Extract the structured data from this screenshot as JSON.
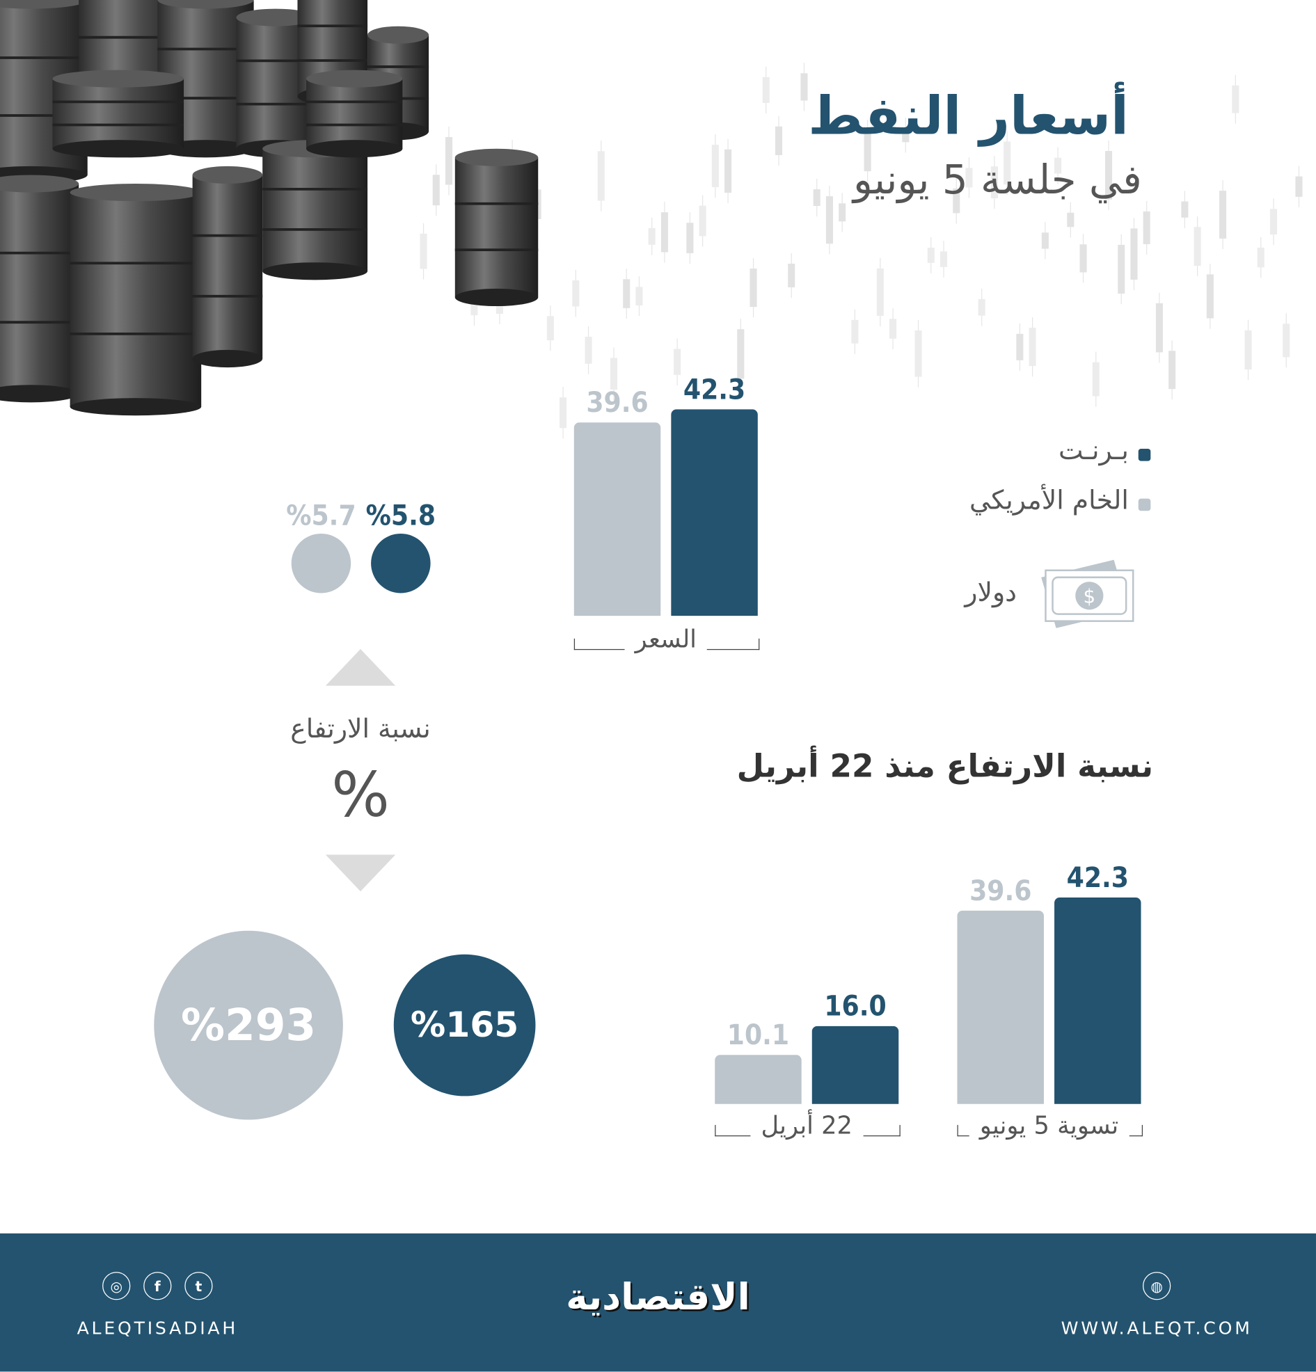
{
  "header": {
    "title": "أسعار النفط",
    "subtitle": "في جلسة 5 يونيو"
  },
  "legend": [
    {
      "label": "بـرنـت",
      "color": "#23536f"
    },
    {
      "label": "الخام الأمريكي",
      "color": "#bcc5cc"
    }
  ],
  "unit": {
    "label": "دولار",
    "icon": "dollar-bill-icon"
  },
  "change_panel": {
    "brent_change": "%5.8",
    "wti_change": "%5.7",
    "label": "نسبة الارتفاع",
    "symbol": "%",
    "brent_rise": "%165",
    "wti_rise": "%293"
  },
  "section2": {
    "heading": "نسبة الارتفاع منذ 22 أبريل"
  },
  "chart_data": [
    {
      "type": "bar",
      "categories": [
        "السعر"
      ],
      "series": [
        {
          "name": "الخام الأمريكي",
          "values": [
            39.6
          ],
          "labels": [
            "39.6"
          ],
          "color": "#bcc5cc"
        },
        {
          "name": "بـرنـت",
          "values": [
            42.3
          ],
          "labels": [
            "42.3"
          ],
          "color": "#23536f"
        }
      ],
      "ylabel": "دولار"
    },
    {
      "type": "bar",
      "categories": [
        "22 أبريل",
        "تسوية 5 يونيو"
      ],
      "series": [
        {
          "name": "الخام الأمريكي",
          "values": [
            10.1,
            39.6
          ],
          "labels": [
            "10.1",
            "39.6"
          ],
          "color": "#bcc5cc"
        },
        {
          "name": "بـرنـت",
          "values": [
            16.0,
            42.3
          ],
          "labels": [
            "16.0",
            "42.3"
          ],
          "color": "#23536f"
        }
      ],
      "ylabel": "دولار"
    }
  ],
  "footer": {
    "logo": "الاقتصادية",
    "social_handle": "ALEQTISADIAH",
    "website": "WWW.ALEQT.COM",
    "icons": [
      "instagram-icon",
      "facebook-icon",
      "twitter-icon",
      "globe-icon"
    ]
  }
}
